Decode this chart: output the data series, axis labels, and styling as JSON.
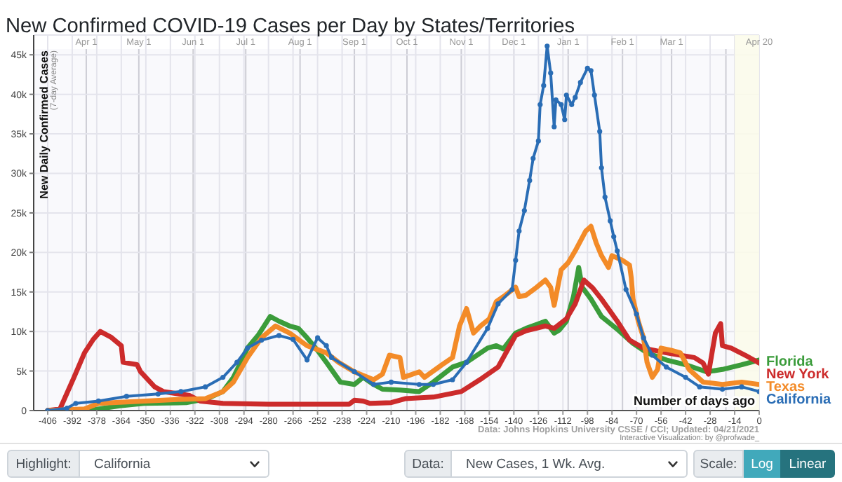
{
  "chart_data": [
    {
      "type": "line",
      "title": "New Confirmed COVID-19 Cases per Day by States/Territories",
      "xlabel": "Number of days ago",
      "ylabel": "New Daily Confirmed Cases",
      "annotations": [
        "(7-day Average)",
        "Data: Johns Hopkins University CSSE / CCI; Updated: 04/21/2021",
        "Interactive Visualization: by @profwade_"
      ],
      "xlim": [
        -414,
        0
      ],
      "xticks": [
        -406,
        -392,
        -378,
        -364,
        -350,
        -336,
        -322,
        -308,
        -294,
        -280,
        -266,
        -252,
        -238,
        -224,
        -210,
        -196,
        -182,
        -168,
        -154,
        -140,
        -126,
        -112,
        -98,
        -84,
        -70,
        -56,
        -42,
        -28,
        -14,
        0
      ],
      "x2lim": [
        "2020-03-02",
        "2021-04-20"
      ],
      "x2ticks": [
        {
          "value": "2020-04-01",
          "label": "Apr 1"
        },
        {
          "value": "2020-05-01",
          "label": "May 1"
        },
        {
          "value": "2020-06-01",
          "label": "Jun 1"
        },
        {
          "value": "2020-07-01",
          "label": "Jul 1"
        },
        {
          "value": "2020-08-01",
          "label": "Aug 1"
        },
        {
          "value": "2020-09-01",
          "label": "Sep 1"
        },
        {
          "value": "2020-10-01",
          "label": "Oct 1"
        },
        {
          "value": "2020-11-01",
          "label": "Nov 1"
        },
        {
          "value": "2020-12-01",
          "label": "Dec 1"
        },
        {
          "value": "2021-01-01",
          "label": "Jan 1"
        },
        {
          "value": "2021-02-01",
          "label": "Feb 1"
        },
        {
          "value": "2021-03-01",
          "label": "Mar 1"
        },
        {
          "value": "2021-04-01",
          "label": null
        },
        {
          "value": "2021-04-20",
          "label": "Apr 20"
        }
      ],
      "ylim": [
        0,
        47500
      ],
      "yticks": [
        0,
        {
          "value": 5000,
          "label": "5k"
        },
        {
          "value": 10000,
          "label": "10k"
        },
        {
          "value": 15000,
          "label": "15k"
        },
        {
          "value": 20000,
          "label": "20k"
        },
        {
          "value": 25000,
          "label": "25k"
        },
        {
          "value": 30000,
          "label": "30k"
        },
        {
          "value": 35000,
          "label": "35k"
        },
        {
          "value": 40000,
          "label": "40k"
        },
        {
          "value": 45000,
          "label": "45k"
        }
      ],
      "grid": true,
      "bands": [
        {
          "axis": "x",
          "from": -14,
          "to": 0,
          "color": "#fbfbea"
        }
      ],
      "series": [
        {
          "name": "Florida",
          "color": "#3b9c3b",
          "x": [
            -406,
            -380,
            -365,
            -351,
            -327,
            -315,
            -306,
            -300,
            -292,
            -286,
            -279,
            -274,
            -268,
            -263,
            -258,
            -252,
            -247,
            -239,
            -231,
            -226,
            -220,
            -215,
            -205,
            -194,
            -186,
            -175,
            -167,
            -155,
            -150,
            -146,
            -139,
            -133,
            -122,
            -117,
            -114,
            -110,
            -106,
            -103,
            -101,
            -96,
            -90,
            -85,
            -80,
            -72,
            -64,
            -53,
            -42,
            -30,
            -21,
            -10,
            0
          ],
          "values": [
            0,
            100,
            600,
            900,
            1000,
            1500,
            2400,
            4200,
            7900,
            9500,
            11900,
            11300,
            10700,
            10400,
            9200,
            7600,
            6100,
            3600,
            3300,
            4200,
            3300,
            2700,
            2600,
            2400,
            3600,
            5500,
            6100,
            7900,
            8200,
            7800,
            9800,
            10400,
            11300,
            9800,
            10200,
            11300,
            14400,
            18100,
            15600,
            14100,
            11900,
            11000,
            10100,
            8500,
            7300,
            6400,
            5800,
            4900,
            5200,
            5800,
            6400
          ]
        },
        {
          "name": "New York",
          "color": "#cc2b2b",
          "x": [
            -406,
            -399,
            -391,
            -385,
            -380,
            -376,
            -370,
            -364,
            -363,
            -355,
            -353,
            -345,
            -340,
            -325,
            -319,
            -306,
            -280,
            -250,
            -234,
            -231,
            -226,
            -222,
            -210,
            -202,
            -186,
            -170,
            -158,
            -149,
            -139,
            -133,
            -122,
            -117,
            -110,
            -105,
            -100,
            -95,
            -90,
            -81,
            -74,
            -66,
            -53,
            -37,
            -32,
            -29,
            -25,
            -22,
            -21,
            -16,
            -8,
            0
          ],
          "values": [
            0,
            200,
            4200,
            7300,
            9000,
            10000,
            9300,
            8200,
            6100,
            5800,
            4900,
            3000,
            2400,
            1900,
            1200,
            900,
            800,
            800,
            800,
            1300,
            1200,
            900,
            1000,
            1500,
            1700,
            2400,
            4100,
            5500,
            9500,
            10100,
            10700,
            10400,
            11600,
            13500,
            16500,
            15500,
            14100,
            11300,
            8900,
            7900,
            7300,
            6700,
            6000,
            4600,
            9800,
            11000,
            8200,
            7900,
            7000,
            6000
          ]
        },
        {
          "name": "Texas",
          "color": "#f38b28",
          "x": [
            -406,
            -385,
            -377,
            -359,
            -332,
            -316,
            -306,
            -300,
            -292,
            -284,
            -276,
            -268,
            -258,
            -247,
            -240,
            -231,
            -220,
            -215,
            -211,
            -205,
            -203,
            -194,
            -191,
            -181,
            -175,
            -171,
            -167,
            -163,
            -159,
            -154,
            -150,
            -146,
            -139,
            -137,
            -133,
            -127,
            -122,
            -119,
            -117,
            -113,
            -109,
            -105,
            -99,
            -96,
            -93,
            -90,
            -86,
            -84,
            -78,
            -74,
            -73,
            -72,
            -69,
            -66,
            -64,
            -61,
            -58,
            -56,
            -50,
            -45,
            -40,
            -32,
            -21,
            -10,
            0
          ],
          "values": [
            0,
            200,
            900,
            1100,
            1400,
            1500,
            2400,
            3600,
            6700,
            9200,
            10700,
            9800,
            8200,
            7300,
            6100,
            4900,
            3900,
            4600,
            7000,
            6700,
            4200,
            4900,
            4200,
            5800,
            6700,
            10700,
            12900,
            9800,
            10700,
            11600,
            13800,
            14400,
            15600,
            14400,
            14600,
            15600,
            16500,
            15600,
            13300,
            17800,
            18700,
            20200,
            22700,
            23300,
            21200,
            19600,
            18100,
            19600,
            19000,
            18400,
            16800,
            14100,
            11300,
            9200,
            6100,
            4200,
            5200,
            7900,
            7600,
            7300,
            5200,
            3600,
            3300,
            3600,
            3300
          ]
        },
        {
          "name": "California",
          "color": "#2a6db5",
          "marker": "circle",
          "x": [
            -406,
            -395,
            -390,
            -377,
            -361,
            -343,
            -330,
            -316,
            -306,
            -298,
            -292,
            -284,
            -274,
            -266,
            -258,
            -252,
            -247,
            -244,
            -231,
            -220,
            -210,
            -194,
            -186,
            -175,
            -167,
            -155,
            -149,
            -141,
            -139,
            -137,
            -134,
            -131,
            -129,
            -126,
            -125,
            -123,
            -121,
            -119,
            -117,
            -116,
            -113,
            -111,
            -110,
            -107,
            -105,
            -102,
            -98,
            -96,
            -94,
            -91,
            -90,
            -88,
            -85,
            -83,
            -81,
            -76,
            -70,
            -66,
            -61,
            -53,
            -42,
            -34,
            -21,
            -10,
            0
          ],
          "values": [
            0,
            300,
            900,
            1200,
            1800,
            2100,
            2400,
            3000,
            4200,
            6100,
            7900,
            8900,
            9500,
            9000,
            6400,
            9200,
            8200,
            6700,
            4900,
            3300,
            3600,
            3300,
            3300,
            3900,
            6100,
            10400,
            13500,
            15300,
            19000,
            22700,
            25300,
            29100,
            31900,
            34100,
            38700,
            41100,
            46100,
            42700,
            35900,
            39300,
            38700,
            36800,
            39900,
            38700,
            39600,
            41500,
            43300,
            43000,
            39900,
            35300,
            30700,
            27000,
            24000,
            22000,
            20200,
            15300,
            12200,
            9200,
            7000,
            5500,
            4200,
            3000,
            2700,
            3000,
            2400
          ]
        }
      ]
    },
    {
      "type": "other",
      "annotations": [
        "Highlight:",
        "California",
        "Data:",
        "New Cases, 1 Wk. Avg.",
        "Scale:",
        "Log",
        "Linear"
      ]
    }
  ]
}
